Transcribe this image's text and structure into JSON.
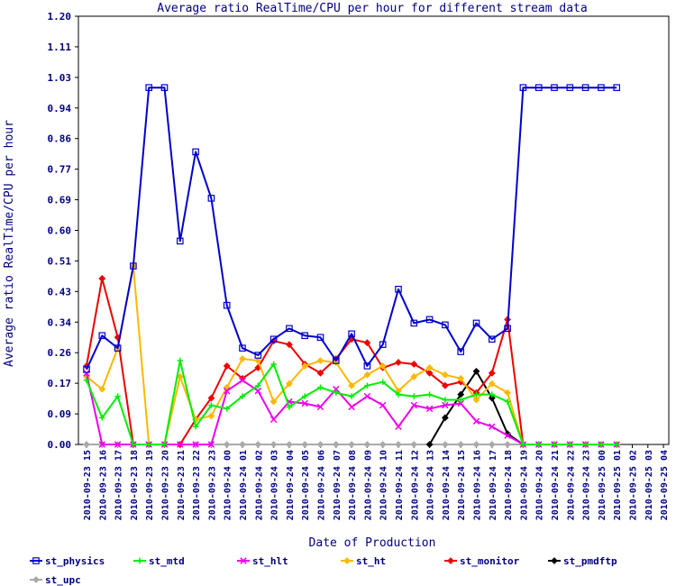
{
  "chart_data": {
    "type": "line",
    "title": "Average ratio RealTime/CPU per hour for different stream data",
    "xlabel": "Date of Production",
    "ylabel": "Average ratio RealTime/CPU per hour",
    "ylim": [
      0,
      1.2
    ],
    "y_ticks": [
      "0.00",
      "0.09",
      "0.17",
      "0.26",
      "0.34",
      "0.43",
      "0.51",
      "0.60",
      "0.69",
      "0.77",
      "0.86",
      "0.94",
      "1.03",
      "1.11",
      "1.20"
    ],
    "categories": [
      "2010-09-23 15",
      "2010-09-23 16",
      "2010-09-23 17",
      "2010-09-23 18",
      "2010-09-23 19",
      "2010-09-23 20",
      "2010-09-23 21",
      "2010-09-23 22",
      "2010-09-23 23",
      "2010-09-24 00",
      "2010-09-24 01",
      "2010-09-24 02",
      "2010-09-24 03",
      "2010-09-24 04",
      "2010-09-24 05",
      "2010-09-24 06",
      "2010-09-24 07",
      "2010-09-24 08",
      "2010-09-24 09",
      "2010-09-24 10",
      "2010-09-24 11",
      "2010-09-24 12",
      "2010-09-24 13",
      "2010-09-24 14",
      "2010-09-24 15",
      "2010-09-24 16",
      "2010-09-24 17",
      "2010-09-24 18",
      "2010-09-24 19",
      "2010-09-24 20",
      "2010-09-24 21",
      "2010-09-24 22",
      "2010-09-24 23",
      "2010-09-25 00",
      "2010-09-25 01",
      "2010-09-25 02",
      "2010-09-25 03",
      "2010-09-25 04",
      "2010-09-25 05",
      "2010-09-25 08",
      "2010-09-26 00"
    ],
    "grid": false,
    "legend_position": "bottom",
    "series": [
      {
        "name": "st_physics",
        "color": "#0000cc",
        "marker": "square",
        "values": [
          0.21,
          0.305,
          0.27,
          0.5,
          1.0,
          1.0,
          0.57,
          0.82,
          0.69,
          0.39,
          0.27,
          0.25,
          0.295,
          0.325,
          0.305,
          0.3,
          0.235,
          0.31,
          0.22,
          0.28,
          0.435,
          0.34,
          0.35,
          0.335,
          0.26,
          0.34,
          0.295,
          0.325,
          1.0,
          1.0,
          1.0,
          1.0,
          1.0,
          1.0,
          1.0,
          null,
          null,
          null,
          null,
          null,
          null
        ]
      },
      {
        "name": "st_mtd",
        "color": "#00ee00",
        "marker": "cross",
        "values": [
          0.18,
          0.075,
          0.135,
          0.0,
          0.0,
          0.0,
          0.235,
          0.05,
          0.11,
          0.1,
          0.135,
          0.165,
          0.225,
          0.105,
          0.135,
          0.16,
          0.145,
          0.135,
          0.165,
          0.175,
          0.14,
          0.135,
          0.14,
          0.125,
          0.125,
          0.14,
          0.14,
          0.12,
          0.0,
          0.0,
          0.0,
          0.0,
          0.0,
          0.0,
          0.0,
          null,
          null,
          null,
          null,
          null,
          null
        ]
      },
      {
        "name": "st_hlt",
        "color": "#ee00ee",
        "marker": "x",
        "values": [
          0.2,
          0.0,
          0.0,
          0.0,
          0.0,
          0.0,
          0.0,
          0.0,
          0.0,
          0.15,
          0.18,
          0.15,
          0.07,
          0.12,
          0.115,
          0.105,
          0.155,
          0.105,
          0.135,
          0.11,
          0.05,
          0.11,
          0.1,
          0.11,
          0.115,
          0.065,
          0.05,
          0.025,
          0.0,
          0.0,
          0.0,
          0.0,
          0.0,
          0.0,
          0.0,
          null,
          null,
          null,
          null,
          null,
          null
        ]
      },
      {
        "name": "st_ht",
        "color": "#ffb800",
        "marker": "diamond",
        "values": [
          0.19,
          0.155,
          0.27,
          0.5,
          0.0,
          0.0,
          0.19,
          0.07,
          0.08,
          0.16,
          0.24,
          0.235,
          0.12,
          0.17,
          0.22,
          0.235,
          0.23,
          0.165,
          0.195,
          0.22,
          0.15,
          0.19,
          0.215,
          0.195,
          0.185,
          0.125,
          0.17,
          0.145,
          0.0,
          0.0,
          0.0,
          0.0,
          0.0,
          0.0,
          0.0,
          null,
          null,
          null,
          null,
          null,
          null
        ]
      },
      {
        "name": "st_monitor",
        "color": "#ee0000",
        "marker": "diamond",
        "values": [
          0.22,
          0.465,
          0.3,
          0.0,
          0.0,
          0.0,
          0.0,
          0.07,
          0.13,
          0.22,
          0.185,
          0.215,
          0.29,
          0.28,
          0.225,
          0.2,
          0.24,
          0.295,
          0.285,
          0.215,
          0.23,
          0.225,
          0.2,
          0.165,
          0.175,
          0.145,
          0.2,
          0.35,
          0.0,
          0.0,
          0.0,
          0.0,
          0.0,
          0.0,
          0.0,
          null,
          null,
          null,
          null,
          null,
          null
        ]
      },
      {
        "name": "st_pmdftp",
        "color": "#000000",
        "marker": "diamond",
        "values": [
          null,
          null,
          null,
          null,
          null,
          null,
          null,
          null,
          null,
          null,
          null,
          null,
          null,
          null,
          null,
          null,
          null,
          null,
          null,
          null,
          null,
          null,
          0.0,
          0.075,
          0.14,
          0.205,
          0.13,
          0.03,
          0.0,
          null,
          null,
          null,
          null,
          null,
          null,
          null,
          null,
          null,
          null,
          null,
          null
        ]
      },
      {
        "name": "st_upc",
        "color": "#aaaaaa",
        "marker": "diamond",
        "values": [
          0,
          0,
          0,
          0,
          0,
          0,
          0,
          0,
          0,
          0,
          0,
          0,
          0,
          0,
          0,
          0,
          0,
          0,
          0,
          0,
          0,
          0,
          0,
          0,
          0,
          0,
          0,
          0,
          0,
          0,
          0,
          0,
          0,
          0,
          0,
          null,
          null,
          null,
          null,
          null,
          null
        ]
      }
    ]
  }
}
